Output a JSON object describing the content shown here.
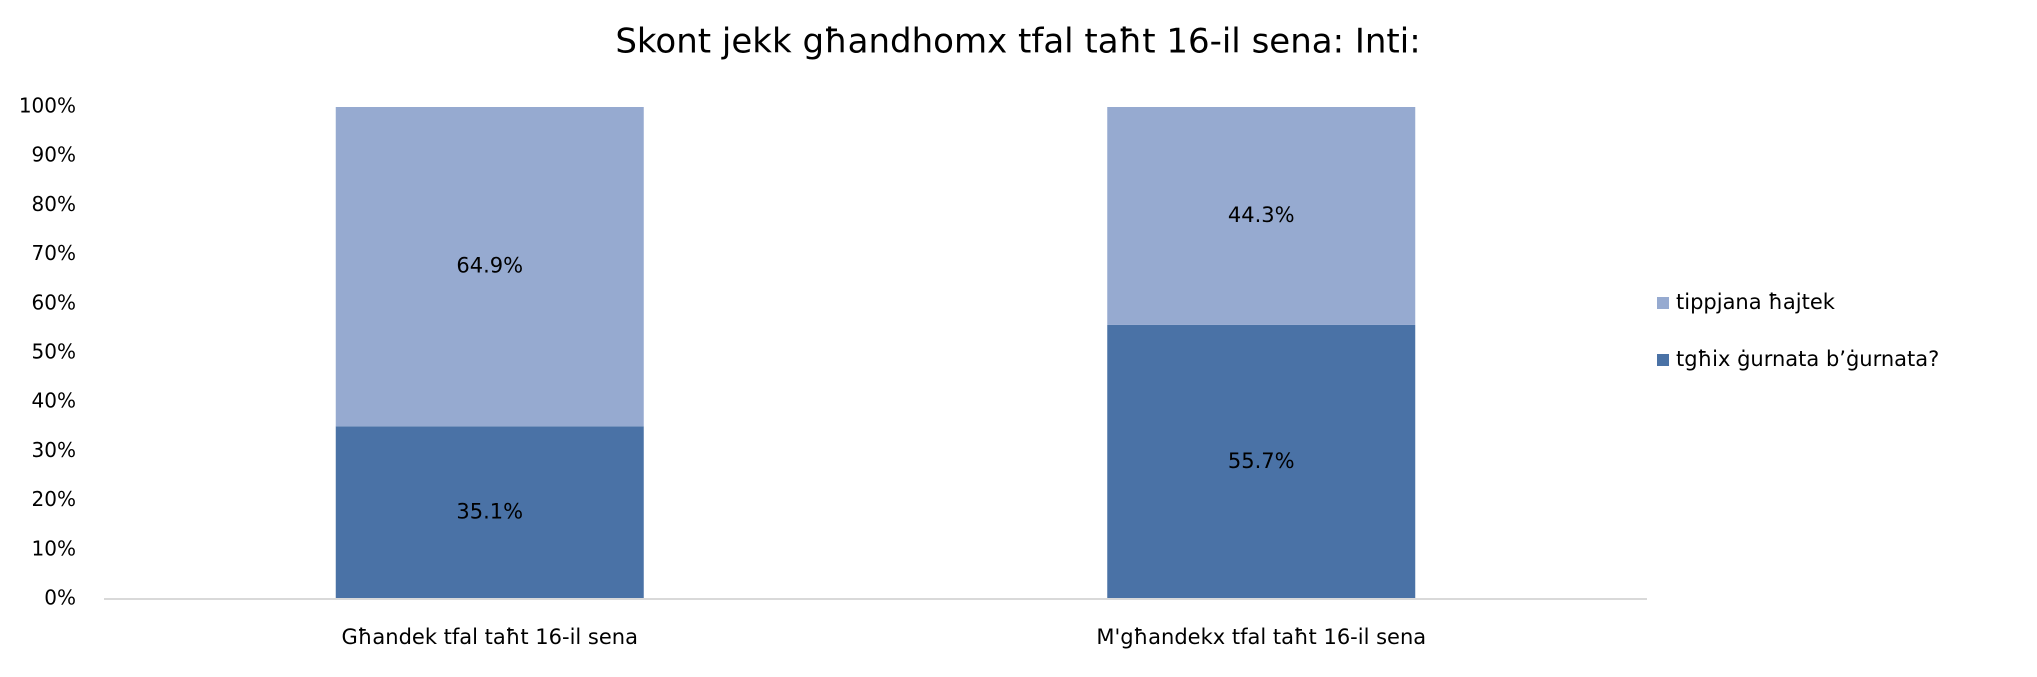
{
  "chart_data": {
    "type": "stacked_bar",
    "title": "Skont jekk għandhomx tfal taħt 16-il sena: Inti:",
    "categories": [
      "Għandek tfal taħt 16-il sena",
      "M'għandekx tfal taħt 16-il sena"
    ],
    "series": [
      {
        "name": "tgħix ġurnata b’ġurnata?",
        "color": "#4a72a6",
        "values": [
          35.1,
          55.7
        ],
        "value_labels": [
          "35.1%",
          "55.7%"
        ]
      },
      {
        "name": "tippjana ħajtek",
        "color": "#96aad0",
        "values": [
          64.9,
          44.3
        ],
        "value_labels": [
          "64.9%",
          "44.3%"
        ]
      }
    ],
    "ylim": [
      0,
      100
    ],
    "yticks": [
      {
        "value": 0,
        "label": "0%"
      },
      {
        "value": 10,
        "label": "10%"
      },
      {
        "value": 20,
        "label": "20%"
      },
      {
        "value": 30,
        "label": "30%"
      },
      {
        "value": 40,
        "label": "40%"
      },
      {
        "value": 50,
        "label": "50%"
      },
      {
        "value": 60,
        "label": "60%"
      },
      {
        "value": 70,
        "label": "70%"
      },
      {
        "value": 80,
        "label": "80%"
      },
      {
        "value": 90,
        "label": "90%"
      },
      {
        "value": 100,
        "label": "100%"
      }
    ],
    "legend": "right"
  }
}
